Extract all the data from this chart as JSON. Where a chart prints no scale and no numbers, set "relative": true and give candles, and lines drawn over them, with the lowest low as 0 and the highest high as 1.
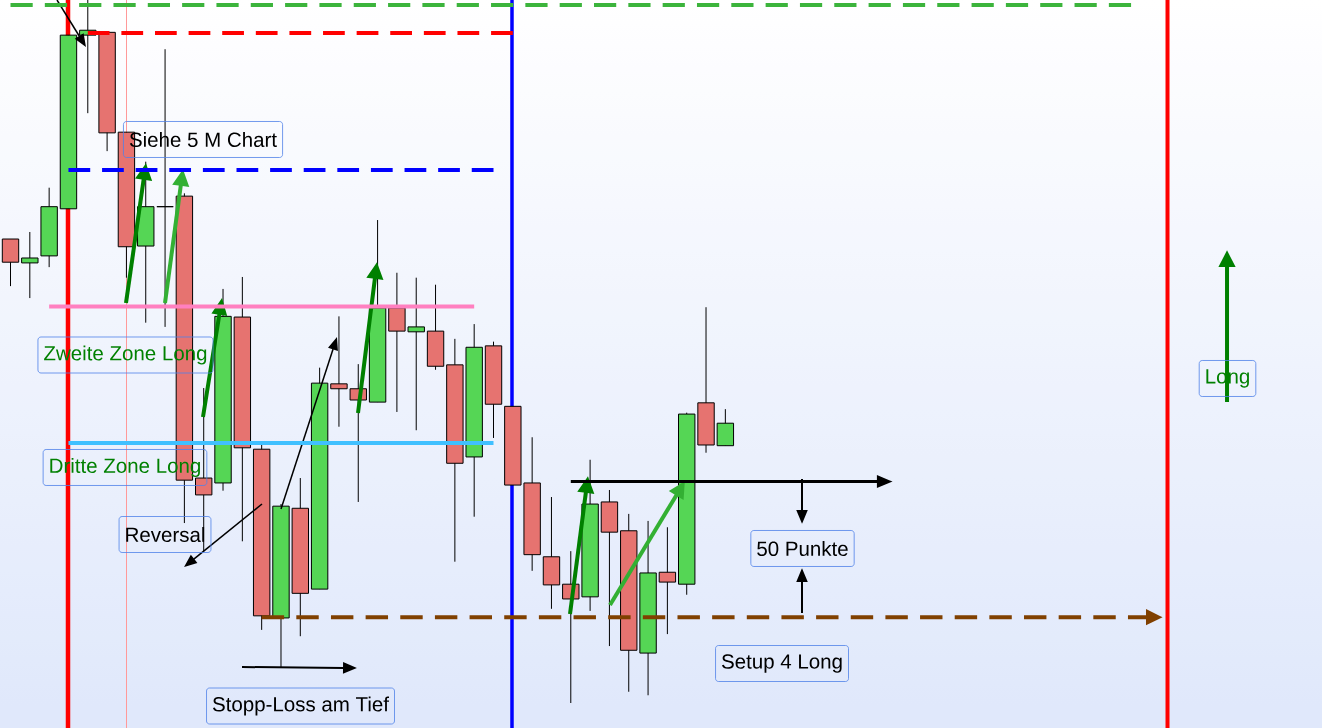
{
  "chart_data": {
    "type": "candlestick",
    "relative": true,
    "categories": [
      null,
      null,
      null,
      null,
      null,
      null,
      null,
      null,
      null,
      null,
      null,
      null,
      null,
      null,
      null,
      null,
      null,
      null,
      null,
      null,
      null,
      null,
      null,
      null,
      null,
      null,
      null,
      null,
      null,
      null,
      null,
      null,
      null,
      null,
      null,
      null,
      null,
      null,
      null,
      null,
      null,
      null,
      null,
      null,
      null,
      null,
      null,
      null,
      null,
      null,
      null,
      null,
      null,
      null,
      null,
      null,
      null,
      null,
      null,
      null,
      null,
      null,
      null,
      null,
      null,
      null,
      null,
      null
    ],
    "ohlc": [
      [
        0.66,
        0.66,
        0.593,
        0.627
      ],
      [
        0.626,
        0.67,
        0.576,
        0.633
      ],
      [
        0.636,
        0.733,
        0.62,
        0.706
      ],
      [
        0.703,
        0.95,
        0.703,
        0.95
      ],
      [
        0.95,
        1.0,
        0.839,
        0.957
      ],
      [
        0.954,
        0.954,
        0.785,
        0.811
      ],
      [
        0.812,
        0.812,
        0.605,
        0.649
      ],
      [
        0.65,
        0.77,
        0.541,
        0.706
      ],
      [
        0.706,
        0.93,
        0.535,
        0.706
      ],
      [
        0.721,
        0.725,
        0.256,
        0.317
      ],
      [
        0.32,
        0.448,
        0.216,
        0.296
      ],
      [
        0.313,
        0.589,
        0.302,
        0.55
      ],
      [
        0.549,
        0.606,
        0.23,
        0.363
      ],
      [
        0.361,
        0.367,
        0.104,
        0.124
      ],
      [
        0.121,
        0.283,
        0.05,
        0.28
      ],
      [
        0.277,
        0.32,
        0.095,
        0.156
      ],
      [
        0.162,
        0.477,
        0.162,
        0.455
      ],
      [
        0.454,
        0.55,
        0.393,
        0.447
      ],
      [
        0.447,
        0.482,
        0.286,
        0.431
      ],
      [
        0.428,
        0.687,
        0.428,
        0.562
      ],
      [
        0.562,
        0.612,
        0.414,
        0.529
      ],
      [
        0.528,
        0.605,
        0.388,
        0.535
      ],
      [
        0.529,
        0.595,
        0.474,
        0.479
      ],
      [
        0.481,
        0.518,
        0.201,
        0.341
      ],
      [
        0.35,
        0.539,
        0.265,
        0.506
      ],
      [
        0.508,
        0.514,
        0.377,
        0.425
      ],
      [
        0.422,
        0.422,
        0.31,
        0.31
      ],
      [
        0.313,
        0.378,
        0.188,
        0.211
      ],
      [
        0.208,
        0.293,
        0.134,
        0.168
      ],
      [
        0.169,
        0.216,
        0.0,
        0.148
      ],
      [
        0.151,
        0.346,
        0.131,
        0.283
      ],
      [
        0.286,
        0.303,
        0.081,
        0.243
      ],
      [
        0.245,
        0.269,
        0.016,
        0.075
      ],
      [
        0.071,
        0.259,
        0.011,
        0.185
      ],
      [
        0.186,
        0.25,
        0.098,
        0.172
      ],
      [
        0.169,
        0.413,
        0.154,
        0.411
      ],
      [
        0.427,
        0.563,
        0.356,
        0.367
      ],
      [
        0.366,
        0.418,
        0.366,
        0.398
      ],
      null,
      null,
      null,
      null,
      null,
      null,
      null,
      null,
      null,
      null,
      null,
      null,
      null,
      null,
      null,
      null,
      null,
      null,
      null,
      null,
      null,
      null,
      null,
      null,
      null,
      null,
      null,
      null,
      null,
      null
    ],
    "colors": [
      "#e67370",
      "#55d655",
      "#55d655",
      "#55d655",
      "#55d655",
      "#e67370",
      "#e67370",
      "#55d655",
      "#000000",
      "#e67370",
      "#e67370",
      "#55d655",
      "#e67370",
      "#e67370",
      "#55d655",
      "#e67370",
      "#55d655",
      "#e67370",
      "#e67370",
      "#55d655",
      "#e67370",
      "#55d655",
      "#e67370",
      "#e67370",
      "#55d655",
      "#e67370",
      "#e67370",
      "#e67370",
      "#e67370",
      "#e67370",
      "#55d655",
      "#e67370",
      "#e67370",
      "#55d655",
      "#e67370",
      "#55d655",
      "#e67370",
      "#55d655",
      null,
      null,
      null,
      null,
      null,
      null,
      null,
      null,
      null,
      null,
      null,
      null,
      null,
      null,
      null,
      null,
      null,
      null,
      null,
      null,
      null,
      null,
      null,
      null,
      null,
      null,
      null,
      null,
      null,
      null
    ],
    "series": [
      {
        "type": "line",
        "color": "#3cb43c",
        "line_style": "dashed",
        "values": [
          0.993,
          0.993,
          0.993,
          0.993,
          0.993,
          0.993,
          0.993,
          0.993,
          0.993,
          0.993,
          0.993,
          0.993,
          0.993,
          0.993,
          0.993,
          0.993,
          0.993,
          0.993,
          0.993,
          0.993,
          0.993,
          0.993,
          0.993,
          0.993,
          0.993,
          0.993,
          0.993,
          0.993,
          0.993,
          0.993,
          0.993,
          0.993,
          0.993,
          0.993,
          0.993,
          0.993,
          0.993,
          0.993,
          0.993,
          0.993,
          0.993,
          0.993,
          0.993,
          0.993,
          0.993,
          0.993,
          0.993,
          0.993,
          0.993,
          0.993,
          0.993,
          0.993,
          0.993,
          0.993,
          0.993,
          0.993,
          0.993,
          0.993,
          0.993,
          null,
          null,
          null,
          null,
          null,
          null,
          null,
          null,
          null
        ]
      },
      {
        "type": "line",
        "color": "#ff0000",
        "line_style": "dashed",
        "values": [
          null,
          null,
          null,
          null,
          0.953,
          0.953,
          0.953,
          0.953,
          0.953,
          0.953,
          0.953,
          0.953,
          0.953,
          0.953,
          0.953,
          0.953,
          0.953,
          0.953,
          0.953,
          0.953,
          0.953,
          0.953,
          0.953,
          0.953,
          0.953,
          0.953,
          0.953,
          null,
          null,
          null,
          null,
          null,
          null,
          null,
          null,
          null,
          null,
          null,
          null,
          null,
          null,
          null,
          null,
          null,
          null,
          null,
          null,
          null,
          null,
          null,
          null,
          null,
          null,
          null,
          null,
          null,
          null,
          null,
          null,
          null,
          null,
          null,
          null,
          null,
          null,
          null,
          null,
          null
        ]
      },
      {
        "type": "line",
        "color": "#0000ff",
        "line_style": "dashed",
        "values": [
          null,
          null,
          null,
          0.758,
          0.758,
          0.758,
          0.758,
          0.758,
          0.758,
          0.758,
          0.758,
          0.758,
          0.758,
          0.758,
          0.758,
          0.758,
          0.758,
          0.758,
          0.758,
          0.758,
          0.758,
          0.758,
          0.758,
          0.758,
          0.758,
          0.758,
          null,
          null,
          null,
          null,
          null,
          null,
          null,
          null,
          null,
          null,
          null,
          null,
          null,
          null,
          null,
          null,
          null,
          null,
          null,
          null,
          null,
          null,
          null,
          null,
          null,
          null,
          null,
          null,
          null,
          null,
          null,
          null,
          null,
          null,
          null,
          null,
          null,
          null,
          null,
          null,
          null,
          null
        ]
      },
      {
        "type": "line",
        "color": "#ff80c0",
        "line_style": "solid",
        "values": [
          null,
          null,
          0.564,
          0.564,
          0.564,
          0.564,
          0.564,
          0.564,
          0.564,
          0.564,
          0.564,
          0.564,
          0.564,
          0.564,
          0.564,
          0.564,
          0.564,
          0.564,
          0.564,
          0.564,
          0.564,
          0.564,
          0.564,
          0.564,
          0.564,
          null,
          null,
          null,
          null,
          null,
          null,
          null,
          null,
          null,
          null,
          null,
          null,
          null,
          null,
          null,
          null,
          null,
          null,
          null,
          null,
          null,
          null,
          null,
          null,
          null,
          null,
          null,
          null,
          null,
          null,
          null,
          null,
          null,
          null,
          null,
          null,
          null,
          null,
          null,
          null,
          null,
          null,
          null
        ]
      },
      {
        "type": "line",
        "color": "#40c0ff",
        "line_style": "solid",
        "values": [
          null,
          null,
          null,
          0.37,
          0.37,
          0.37,
          0.37,
          0.37,
          0.37,
          0.37,
          0.37,
          0.37,
          0.37,
          0.37,
          0.37,
          0.37,
          0.37,
          0.37,
          0.37,
          0.37,
          0.37,
          0.37,
          0.37,
          0.37,
          0.37,
          0.37,
          null,
          null,
          null,
          null,
          null,
          null,
          null,
          null,
          null,
          null,
          null,
          null,
          null,
          null,
          null,
          null,
          null,
          null,
          null,
          null,
          null,
          null,
          null,
          null,
          null,
          null,
          null,
          null,
          null,
          null,
          null,
          null,
          null,
          null,
          null,
          null,
          null,
          null,
          null,
          null,
          null,
          null
        ]
      },
      {
        "type": "line",
        "color": "#804000",
        "line_style": "dashed",
        "values": [
          null,
          null,
          null,
          null,
          null,
          null,
          null,
          null,
          null,
          null,
          null,
          null,
          null,
          0.122,
          0.122,
          0.122,
          0.122,
          0.122,
          0.122,
          0.122,
          0.122,
          0.122,
          0.122,
          0.122,
          0.122,
          0.122,
          0.122,
          0.122,
          0.122,
          0.122,
          0.122,
          0.122,
          0.122,
          0.122,
          0.122,
          0.122,
          0.122,
          0.122,
          0.122,
          0.122,
          0.122,
          0.122,
          0.122,
          0.122,
          0.122,
          0.122,
          0.122,
          0.122,
          0.122,
          0.122,
          0.122,
          0.122,
          0.122,
          0.122,
          0.122,
          0.122,
          0.122,
          0.122,
          0.122,
          0.122,
          null,
          null,
          null,
          null,
          null,
          null,
          null,
          null
        ]
      },
      {
        "type": "line",
        "color": "#000000",
        "line_style": "solid",
        "values": [
          null,
          null,
          null,
          null,
          null,
          null,
          null,
          null,
          null,
          null,
          null,
          null,
          null,
          null,
          null,
          null,
          null,
          null,
          null,
          null,
          null,
          null,
          null,
          null,
          null,
          null,
          null,
          null,
          null,
          0.315,
          0.315,
          0.315,
          0.315,
          0.315,
          0.315,
          0.315,
          0.315,
          0.315,
          0.315,
          0.315,
          0.315,
          0.315,
          0.315,
          0.315,
          0.315,
          0.315,
          null,
          null,
          null,
          null,
          null,
          null,
          null,
          null,
          null,
          null,
          null,
          null,
          null,
          null,
          null,
          null,
          null,
          null,
          null,
          null,
          null,
          null
        ]
      }
    ],
    "annotations": [
      "Siehe 5 M Chart",
      "Zweite Zone Long",
      "Dritte Zone Long",
      "Reversal",
      "Stopp-Loss am Tief",
      "50 Punkte",
      "Setup 4 Long",
      "Long"
    ]
  }
}
